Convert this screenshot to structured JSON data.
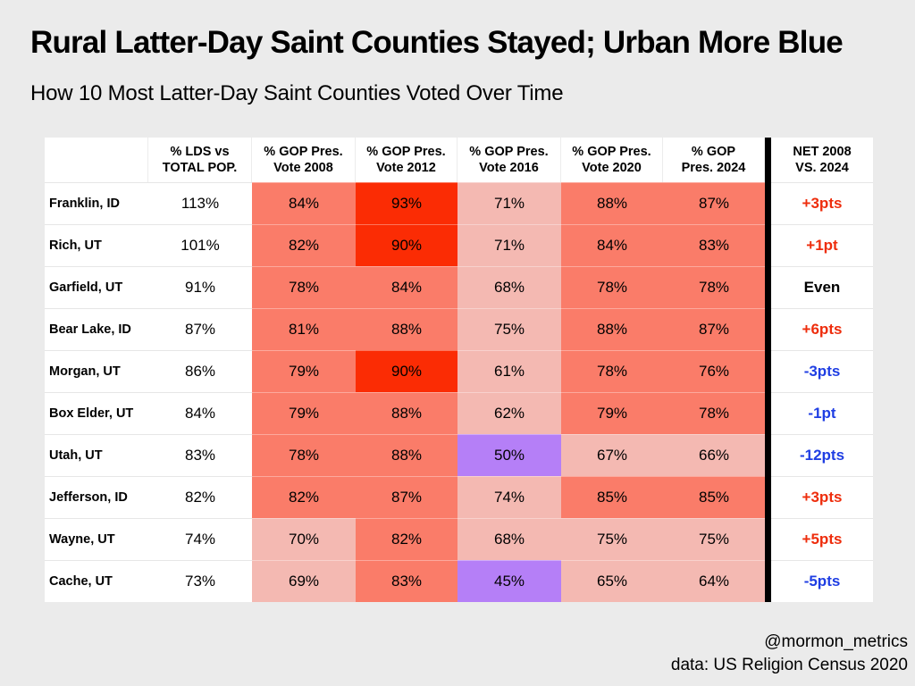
{
  "chart_data": {
    "type": "table",
    "title": "Rural Latter-Day Saint Counties Stayed; Urban More Blue",
    "subtitle": "How 10 Most Latter-Day Saint Counties Voted Over Time",
    "columns": [
      {
        "line1": "% LDS vs",
        "line2": "TOTAL POP."
      },
      {
        "line1": "% GOP Pres.",
        "line2": "Vote 2008"
      },
      {
        "line1": "% GOP Pres.",
        "line2": "Vote 2012"
      },
      {
        "line1": "% GOP Pres.",
        "line2": "Vote 2016"
      },
      {
        "line1": "% GOP Pres.",
        "line2": "Vote 2020"
      },
      {
        "line1": "% GOP",
        "line2": "Pres. 2024"
      },
      {
        "line1": "NET 2008",
        "line2": "VS. 2024"
      }
    ],
    "rows": [
      {
        "county": "Franklin, ID",
        "lds": "113%",
        "gop": [
          "84%",
          "93%",
          "71%",
          "88%",
          "87%"
        ],
        "net": "+3pts"
      },
      {
        "county": "Rich, UT",
        "lds": "101%",
        "gop": [
          "82%",
          "90%",
          "71%",
          "84%",
          "83%"
        ],
        "net": "+1pt"
      },
      {
        "county": "Garfield, UT",
        "lds": "91%",
        "gop": [
          "78%",
          "84%",
          "68%",
          "78%",
          "78%"
        ],
        "net": "Even"
      },
      {
        "county": "Bear Lake, ID",
        "lds": "87%",
        "gop": [
          "81%",
          "88%",
          "75%",
          "88%",
          "87%"
        ],
        "net": "+6pts"
      },
      {
        "county": "Morgan, UT",
        "lds": "86%",
        "gop": [
          "79%",
          "90%",
          "61%",
          "78%",
          "76%"
        ],
        "net": "-3pts"
      },
      {
        "county": "Box Elder, UT",
        "lds": "84%",
        "gop": [
          "79%",
          "88%",
          "62%",
          "79%",
          "78%"
        ],
        "net": "-1pt"
      },
      {
        "county": "Utah, UT",
        "lds": "83%",
        "gop": [
          "78%",
          "88%",
          "50%",
          "67%",
          "66%"
        ],
        "net": "-12pts"
      },
      {
        "county": "Jefferson, ID",
        "lds": "82%",
        "gop": [
          "82%",
          "87%",
          "74%",
          "85%",
          "85%"
        ],
        "net": "+3pts"
      },
      {
        "county": "Wayne, UT",
        "lds": "74%",
        "gop": [
          "70%",
          "82%",
          "68%",
          "75%",
          "75%"
        ],
        "net": "+5pts"
      },
      {
        "county": "Cache, UT",
        "lds": "73%",
        "gop": [
          "69%",
          "83%",
          "45%",
          "65%",
          "64%"
        ],
        "net": "-5pts"
      }
    ]
  },
  "colors": {
    "page_bg": "#ebebeb",
    "strong_red": "#fb2c04",
    "medium_red": "#fa7c69",
    "light_red": "#f4b9b2",
    "purple": "#b57ff7",
    "net_red": "#ee2d0c",
    "net_blue": "#1f3ee3",
    "net_even": "#000000"
  },
  "credits": {
    "handle": "@mormon_metrics",
    "source": "data: US Religion Census 2020"
  }
}
